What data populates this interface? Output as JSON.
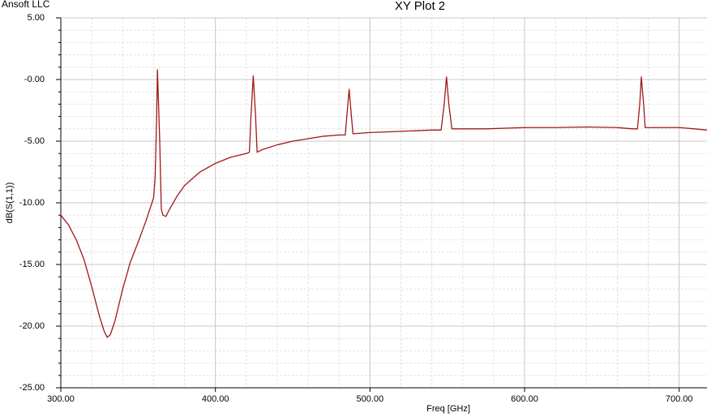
{
  "chart_data": {
    "type": "line",
    "title": "XY Plot 2",
    "annotation": "Ansoft LLC",
    "xlabel": "Freq [GHz]",
    "ylabel": "dB(S(1,1))",
    "color": "#a01818",
    "grid": true,
    "xlim": [
      300,
      718
    ],
    "ylim": [
      -25,
      5
    ],
    "xticks": [
      {
        "value": 300,
        "label": "300.00"
      },
      {
        "value": 400,
        "label": "400.00"
      },
      {
        "value": 500,
        "label": "500.00"
      },
      {
        "value": 600,
        "label": "600.00"
      },
      {
        "value": 700,
        "label": "700.00"
      }
    ],
    "yticks": [
      {
        "value": 5,
        "label": "5.00"
      },
      {
        "value": 0,
        "label": "-0.00"
      },
      {
        "value": -5,
        "label": "-5.00"
      },
      {
        "value": -10,
        "label": "-10.00"
      },
      {
        "value": -15,
        "label": "-15.00"
      },
      {
        "value": -20,
        "label": "-20.00"
      },
      {
        "value": -25,
        "label": "-25.00"
      }
    ],
    "x": [
      300,
      305,
      310,
      315,
      320,
      325,
      328,
      330,
      332,
      335,
      340,
      345,
      350,
      355,
      360,
      361,
      362,
      362.5,
      364,
      365,
      366,
      368,
      370,
      375,
      380,
      390,
      400,
      410,
      420,
      422,
      423,
      424.5,
      426,
      427,
      430,
      440,
      450,
      460,
      470,
      480,
      484,
      485,
      486.5,
      488,
      489,
      500,
      520,
      540,
      546,
      548,
      549.5,
      551,
      553,
      575,
      600,
      620,
      640,
      660,
      670,
      673,
      674.5,
      675.5,
      677,
      678,
      700,
      710,
      718
    ],
    "values": [
      -11.0,
      -11.8,
      -13.0,
      -14.6,
      -16.8,
      -19.2,
      -20.4,
      -20.9,
      -20.7,
      -19.6,
      -17.0,
      -14.8,
      -13.2,
      -11.5,
      -9.6,
      -8.0,
      -3.0,
      0.8,
      -5.0,
      -10.5,
      -11.0,
      -11.1,
      -10.6,
      -9.5,
      -8.6,
      -7.5,
      -6.8,
      -6.3,
      -6.0,
      -5.9,
      -3.0,
      0.3,
      -3.0,
      -5.9,
      -5.7,
      -5.3,
      -5.0,
      -4.8,
      -4.6,
      -4.5,
      -4.5,
      -3.0,
      -0.8,
      -3.0,
      -4.4,
      -4.3,
      -4.2,
      -4.1,
      -4.1,
      -2.0,
      0.2,
      -2.0,
      -4.0,
      -4.0,
      -3.9,
      -3.9,
      -3.85,
      -3.9,
      -4.0,
      -4.0,
      -2.0,
      0.2,
      -2.0,
      -3.9,
      -3.9,
      -4.0,
      -4.1
    ]
  }
}
